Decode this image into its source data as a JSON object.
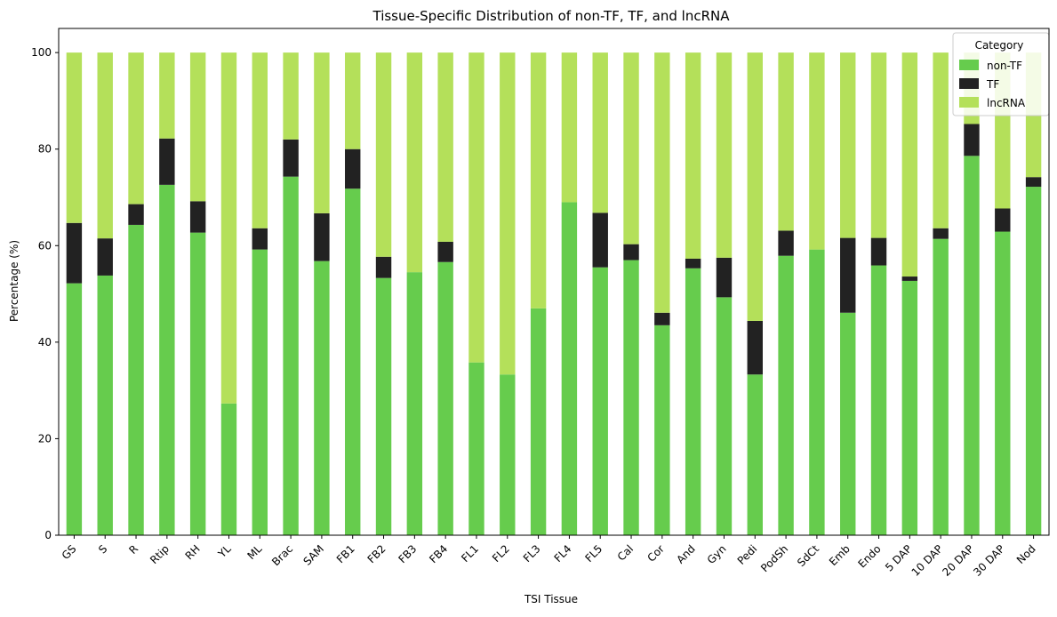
{
  "chart_data": {
    "type": "bar",
    "stacked": true,
    "title": "Tissue-Specific Distribution of non-TF, TF, and lncRNA",
    "xlabel": "TSI Tissue",
    "ylabel": "Percentage (%)",
    "ylim": [
      0,
      105
    ],
    "yticks": [
      0,
      20,
      40,
      60,
      80,
      100
    ],
    "grid": false,
    "legend": {
      "title": "Category",
      "position": "top-right"
    },
    "categories": [
      "GS",
      "S",
      "R",
      "Rtip",
      "RH",
      "YL",
      "ML",
      "Brac",
      "SAM",
      "FB1",
      "FB2",
      "FB3",
      "FB4",
      "FL1",
      "FL2",
      "FL3",
      "FL4",
      "FL5",
      "Cal",
      "Cor",
      "And",
      "Gyn",
      "Pedi",
      "PodSh",
      "SdCt",
      "Emb",
      "Endo",
      "5 DAP",
      "10 DAP",
      "20  DAP",
      "30  DAP",
      "Nod"
    ],
    "series": [
      {
        "name": "non-TF",
        "color": "#66cc4d",
        "values": [
          52.2,
          53.8,
          64.3,
          72.6,
          62.7,
          27.3,
          59.2,
          74.3,
          56.8,
          71.8,
          53.3,
          54.5,
          56.6,
          35.8,
          33.3,
          47.0,
          69.0,
          55.5,
          57.0,
          43.5,
          55.3,
          49.3,
          33.3,
          57.9,
          59.2,
          46.1,
          55.9,
          52.7,
          61.4,
          78.6,
          62.9,
          72.2
        ]
      },
      {
        "name": "TF",
        "color": "#222222",
        "values": [
          12.5,
          7.7,
          4.3,
          9.6,
          6.5,
          0.0,
          4.4,
          7.7,
          9.9,
          8.2,
          4.4,
          0.0,
          4.2,
          0.0,
          0.0,
          0.0,
          0.0,
          11.3,
          3.3,
          2.6,
          2.0,
          8.2,
          11.1,
          5.2,
          0.0,
          15.5,
          5.7,
          0.9,
          2.2,
          6.6,
          4.8,
          2.0
        ]
      },
      {
        "name": "lncRNA",
        "color": "#b4e05a",
        "values": [
          35.3,
          38.5,
          31.4,
          17.8,
          30.8,
          72.7,
          36.4,
          18.0,
          33.3,
          20.0,
          42.3,
          45.5,
          39.2,
          64.2,
          66.7,
          53.0,
          31.0,
          33.2,
          39.7,
          53.9,
          42.7,
          42.5,
          55.6,
          36.9,
          40.8,
          38.4,
          38.4,
          46.4,
          36.4,
          14.8,
          32.3,
          25.8
        ]
      }
    ]
  }
}
